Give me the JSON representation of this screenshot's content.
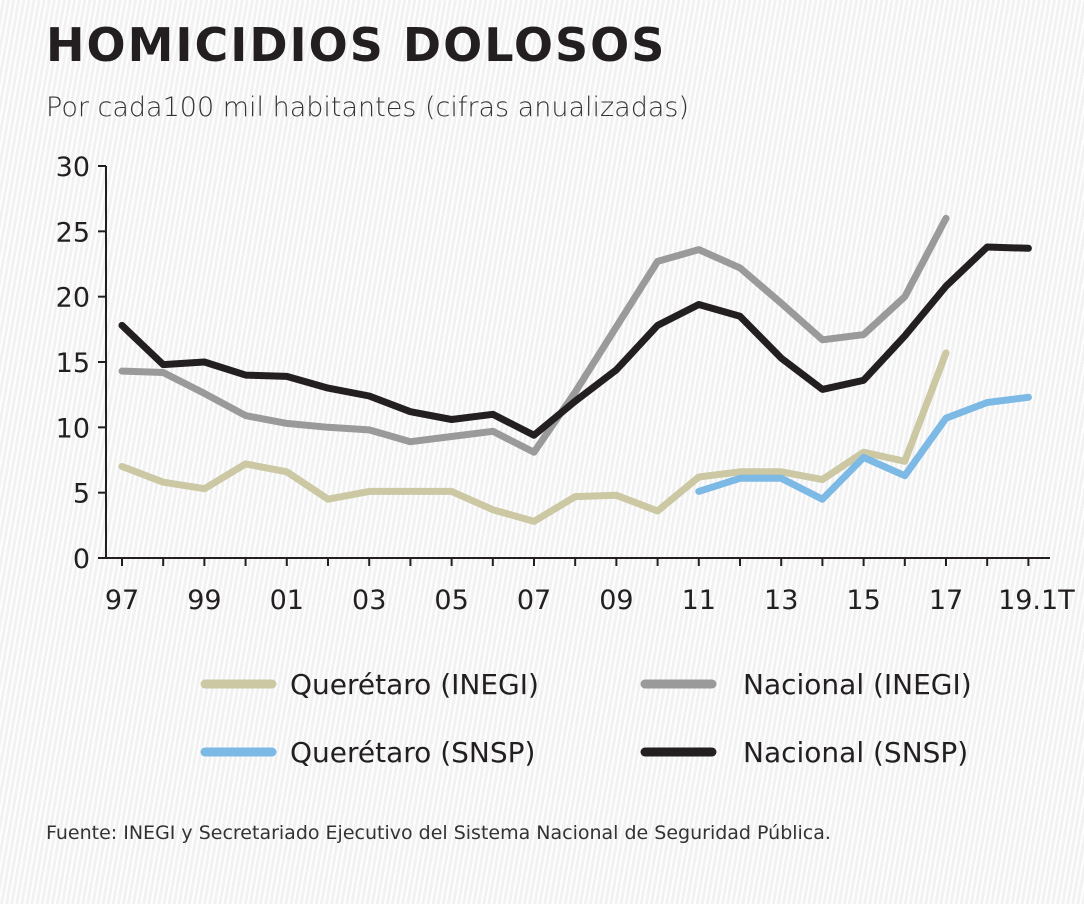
{
  "header": {
    "title": "HOMICIDIOS DOLOSOS",
    "subtitle": "Por cada100 mil habitantes (cifras anualizadas)"
  },
  "footer": {
    "source": "Fuente: INEGI y Secretariado Ejecutivo del Sistema Nacional de Seguridad Pública."
  },
  "chart_data": {
    "type": "line",
    "title": "HOMICIDIOS DOLOSOS",
    "subtitle": "Por cada100 mil habitantes (cifras anualizadas)",
    "xlabel": "",
    "ylabel": "",
    "ylim": [
      0,
      30
    ],
    "yticks": [
      0,
      5,
      10,
      15,
      20,
      25,
      30
    ],
    "ytick_labels": [
      "0",
      "5",
      "10",
      "15",
      "20",
      "25",
      "30"
    ],
    "x": [
      "97",
      "98",
      "99",
      "00",
      "01",
      "02",
      "03",
      "04",
      "05",
      "06",
      "07",
      "08",
      "09",
      "10",
      "11",
      "12",
      "13",
      "14",
      "15",
      "16",
      "17",
      "18",
      "19.1T"
    ],
    "xtick_labels": [
      "97",
      "99",
      "01",
      "03",
      "05",
      "07",
      "09",
      "11",
      "13",
      "15",
      "17",
      "19.1T"
    ],
    "grid": false,
    "legend_position": "bottom",
    "series": [
      {
        "name": "Querétaro (INEGI)",
        "color": "#cbc8a3",
        "values": [
          7.0,
          5.8,
          5.3,
          7.2,
          6.6,
          4.5,
          5.1,
          5.1,
          5.1,
          3.7,
          2.8,
          4.7,
          4.8,
          3.6,
          6.2,
          6.6,
          6.6,
          6.0,
          8.1,
          7.4,
          15.7,
          null,
          null
        ]
      },
      {
        "name": "Nacional (INEGI)",
        "color": "#9a9a9a",
        "values": [
          14.3,
          14.2,
          12.6,
          10.9,
          10.3,
          10.0,
          9.8,
          8.9,
          9.3,
          9.7,
          8.1,
          12.7,
          17.7,
          22.7,
          23.6,
          22.2,
          19.5,
          16.7,
          17.1,
          20.0,
          26.0,
          null,
          null
        ]
      },
      {
        "name": "Querétaro (SNSP)",
        "color": "#7cb9e4",
        "values": [
          null,
          null,
          null,
          null,
          null,
          null,
          null,
          null,
          null,
          null,
          null,
          null,
          null,
          null,
          5.1,
          6.1,
          6.1,
          4.5,
          7.7,
          6.3,
          10.7,
          11.9,
          12.3
        ]
      },
      {
        "name": "Nacional (SNSP)",
        "color": "#231f20",
        "values": [
          17.8,
          14.8,
          15.0,
          14.0,
          13.9,
          13.0,
          12.4,
          11.2,
          10.6,
          11.0,
          9.4,
          12.0,
          14.4,
          17.8,
          19.4,
          18.5,
          15.3,
          12.9,
          13.6,
          17.0,
          20.8,
          23.8,
          23.7
        ]
      }
    ]
  }
}
